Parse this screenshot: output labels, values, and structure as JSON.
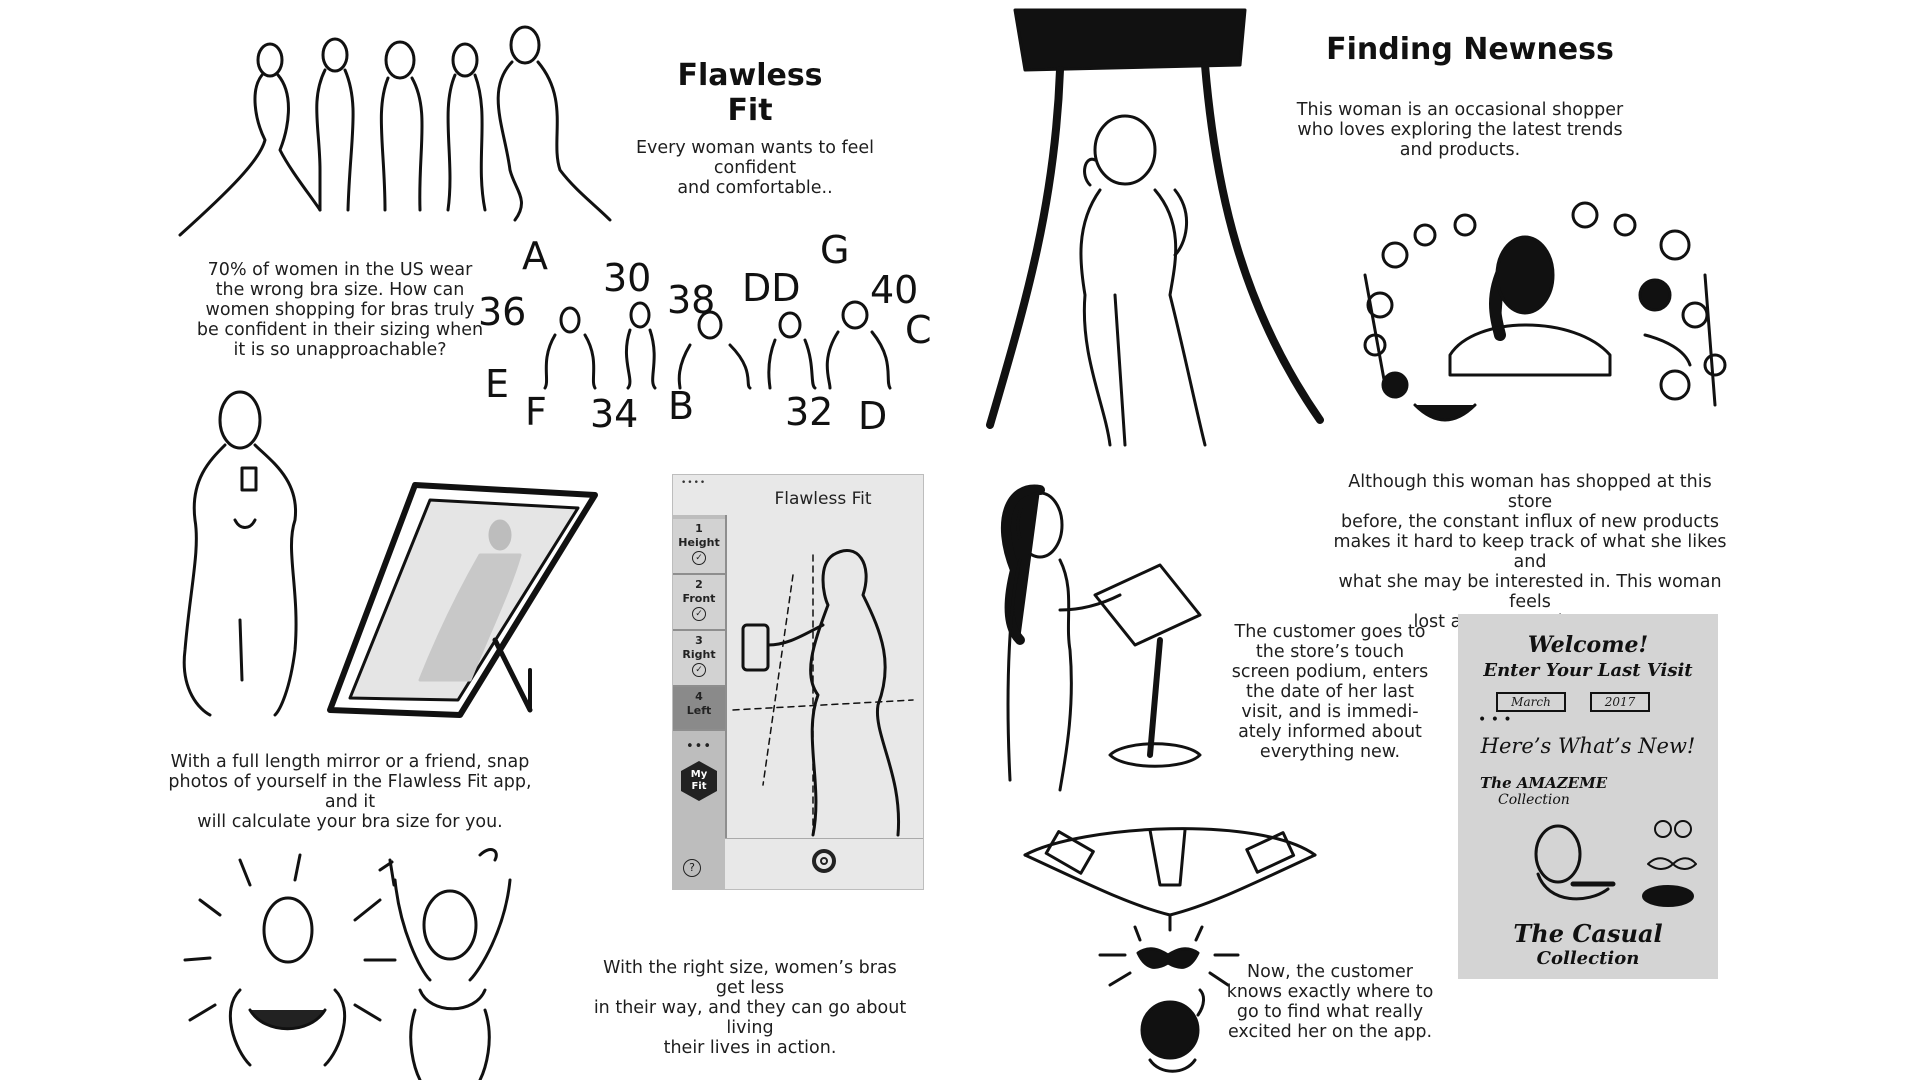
{
  "flawless_fit": {
    "title": "Flawless Fit",
    "intro_lines": [
      "Every woman wants to feel confident",
      "and comfortable.."
    ],
    "stat_lines": [
      "70% of women in the US wear",
      "the wrong bra size. How can",
      "women shopping for bras truly",
      "be confident in their sizing when",
      "it is so unapproachable?"
    ],
    "mirror_lines": [
      "With a full length mirror or a friend, snap",
      "photos of yourself in the Flawless Fit app, and it",
      "will calculate your bra size for you."
    ],
    "result_lines": [
      "With the right size, women’s bras get less",
      "in their way, and they can go about living",
      "their lives in action."
    ],
    "size_labels": [
      "A",
      "30",
      "38",
      "DD",
      "G",
      "40",
      "36",
      "C",
      "E",
      "F",
      "34",
      "B",
      "32",
      "D"
    ]
  },
  "app": {
    "status": "••••",
    "title": "Flawless Fit",
    "steps": [
      {
        "number": "1",
        "label": "Height",
        "done": true
      },
      {
        "number": "2",
        "label": "Front",
        "done": true
      },
      {
        "number": "3",
        "label": "Right",
        "done": true
      },
      {
        "number": "4",
        "label": "Left",
        "done": false
      }
    ],
    "more": "•••",
    "my_fit": [
      "My",
      "Fit"
    ],
    "help": "?"
  },
  "finding_newness": {
    "title": "Finding Newness",
    "intro_lines": [
      "This woman is an occasional shopper",
      "who loves exploring the latest trends",
      "and products."
    ],
    "problem_lines": [
      "Although this woman has shopped at this store",
      "before, the constant influx of new products",
      "makes it hard to keep track of what she likes and",
      "what she may be interested in. This woman feels",
      "lost as soon as she enters."
    ],
    "podium_lines": [
      "The customer goes to",
      "the store’s touch",
      "screen podium, enters",
      "the date of her last",
      "visit, and is immedi-",
      "ately informed about",
      "everything new."
    ],
    "result_lines": [
      "Now, the customer",
      "knows exactly where to",
      "go to find what really",
      "excited her on the app."
    ]
  },
  "welcome_screen": {
    "welcome": "Welcome!",
    "enter": "Enter Your Last Visit",
    "month": "March",
    "year": "2017",
    "dots": "• • •",
    "whats_new": "Here’s What’s New!",
    "collection1": "The AMAZEME",
    "collection1_sub": "Collection",
    "collection2": "The Casual",
    "collection2_sub": "Collection"
  }
}
